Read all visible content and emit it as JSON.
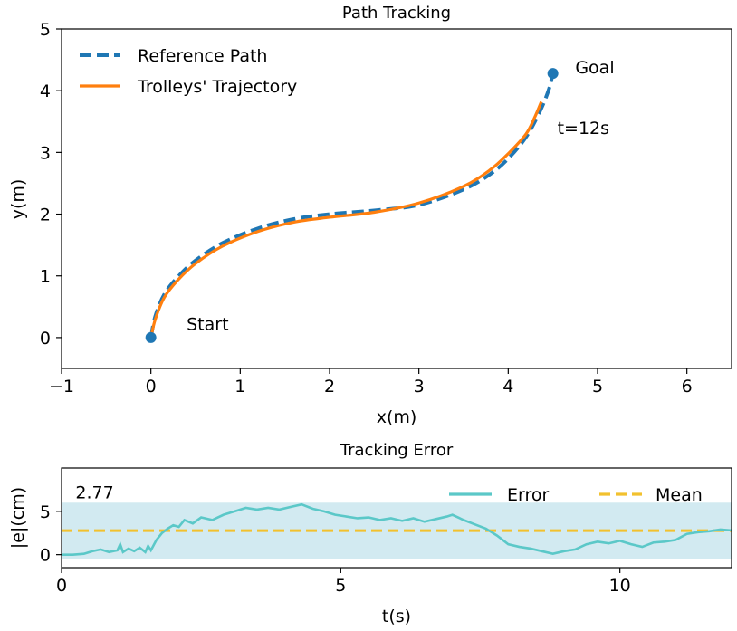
{
  "chart_data": [
    {
      "type": "line",
      "title": "Path Tracking",
      "xlabel": "x(m)",
      "ylabel": "y(m)",
      "xlim": [
        -1,
        6.5
      ],
      "ylim": [
        -0.5,
        5
      ],
      "xticks": [
        -1,
        0,
        1,
        2,
        3,
        4,
        5,
        6
      ],
      "yticks": [
        0,
        1,
        2,
        3,
        4,
        5
      ],
      "xtick_labels": [
        "−1",
        "0",
        "1",
        "2",
        "3",
        "4",
        "5",
        "6"
      ],
      "ytick_labels": [
        "0",
        "1",
        "2",
        "3",
        "4",
        "5"
      ],
      "legend_position": "top-left",
      "series": [
        {
          "name": "Reference Path",
          "style": "dashed",
          "color": "#1f77b4",
          "x": [
            0.0,
            0.05,
            0.15,
            0.3,
            0.5,
            0.8,
            1.2,
            1.6,
            2.0,
            2.5,
            3.0,
            3.5,
            3.8,
            4.0,
            4.2,
            4.35,
            4.45,
            4.5
          ],
          "y": [
            0.0,
            0.35,
            0.7,
            0.98,
            1.25,
            1.53,
            1.77,
            1.92,
            2.0,
            2.06,
            2.15,
            2.4,
            2.65,
            2.9,
            3.25,
            3.65,
            4.0,
            4.28
          ]
        },
        {
          "name": "Trolleys' Trajectory",
          "style": "solid",
          "color": "#ff7f0e",
          "x": [
            0.0,
            0.05,
            0.15,
            0.3,
            0.5,
            0.8,
            1.2,
            1.6,
            2.0,
            2.5,
            3.0,
            3.5,
            3.8,
            4.0,
            4.2,
            4.3,
            4.37
          ],
          "y": [
            0.0,
            0.3,
            0.65,
            0.93,
            1.2,
            1.48,
            1.72,
            1.87,
            1.95,
            2.03,
            2.18,
            2.45,
            2.72,
            2.98,
            3.3,
            3.58,
            3.82
          ]
        }
      ],
      "markers": [
        {
          "name": "start",
          "x": 0,
          "y": 0,
          "color": "#1f77b4"
        },
        {
          "name": "goal",
          "x": 4.5,
          "y": 4.28,
          "color": "#1f77b4"
        }
      ],
      "annotations": [
        {
          "text": "Start",
          "x": 0.4,
          "y": 0.12
        },
        {
          "text": "Goal",
          "x": 4.75,
          "y": 4.28
        },
        {
          "text": "t=12s",
          "x": 4.55,
          "y": 3.3
        }
      ]
    },
    {
      "type": "line",
      "title": "Tracking Error",
      "xlabel": "t(s)",
      "ylabel": "|e|(cm)",
      "xlim": [
        0,
        12
      ],
      "ylim": [
        -1.5,
        10
      ],
      "xticks": [
        0,
        5,
        10
      ],
      "yticks": [
        0,
        5
      ],
      "xtick_labels": [
        "0",
        "5",
        "10"
      ],
      "ytick_labels": [
        "0",
        "5"
      ],
      "legend_position": "top-right",
      "band": {
        "y0": -0.5,
        "y1": 6.0,
        "color": "#add8e6"
      },
      "series": [
        {
          "name": "Error",
          "style": "solid",
          "color": "#5bc8c8",
          "t": [
            0.0,
            0.2,
            0.4,
            0.55,
            0.7,
            0.85,
            1.0,
            1.05,
            1.1,
            1.2,
            1.3,
            1.4,
            1.5,
            1.55,
            1.6,
            1.7,
            1.8,
            1.9,
            2.0,
            2.1,
            2.2,
            2.35,
            2.5,
            2.7,
            2.9,
            3.1,
            3.3,
            3.5,
            3.7,
            3.9,
            4.1,
            4.3,
            4.5,
            4.7,
            4.9,
            5.1,
            5.3,
            5.5,
            5.7,
            5.9,
            6.1,
            6.3,
            6.5,
            6.7,
            6.9,
            7.0,
            7.2,
            7.4,
            7.6,
            7.8,
            8.0,
            8.2,
            8.4,
            8.6,
            8.8,
            9.0,
            9.2,
            9.4,
            9.6,
            9.8,
            10.0,
            10.2,
            10.4,
            10.6,
            10.8,
            11.0,
            11.2,
            11.4,
            11.6,
            11.8,
            12.0
          ],
          "values": [
            0.0,
            0.0,
            0.1,
            0.4,
            0.6,
            0.3,
            0.5,
            1.2,
            0.3,
            0.7,
            0.4,
            0.8,
            0.3,
            1.0,
            0.5,
            1.7,
            2.5,
            3.0,
            3.4,
            3.2,
            4.0,
            3.6,
            4.3,
            4.0,
            4.6,
            5.0,
            5.4,
            5.2,
            5.4,
            5.2,
            5.5,
            5.8,
            5.3,
            5.0,
            4.6,
            4.4,
            4.2,
            4.3,
            4.0,
            4.2,
            3.9,
            4.2,
            3.8,
            4.1,
            4.4,
            4.6,
            4.0,
            3.5,
            3.0,
            2.2,
            1.2,
            0.9,
            0.7,
            0.4,
            0.1,
            0.4,
            0.6,
            1.2,
            1.5,
            1.3,
            1.6,
            1.2,
            0.9,
            1.4,
            1.5,
            1.7,
            2.4,
            2.6,
            2.7,
            2.9,
            2.8
          ]
        },
        {
          "name": "Mean",
          "style": "dashed",
          "color": "#f2c12e",
          "value": 2.77
        }
      ],
      "annotations": [
        {
          "text": "2.77",
          "t": 0.25,
          "y": 6.5
        }
      ]
    }
  ]
}
